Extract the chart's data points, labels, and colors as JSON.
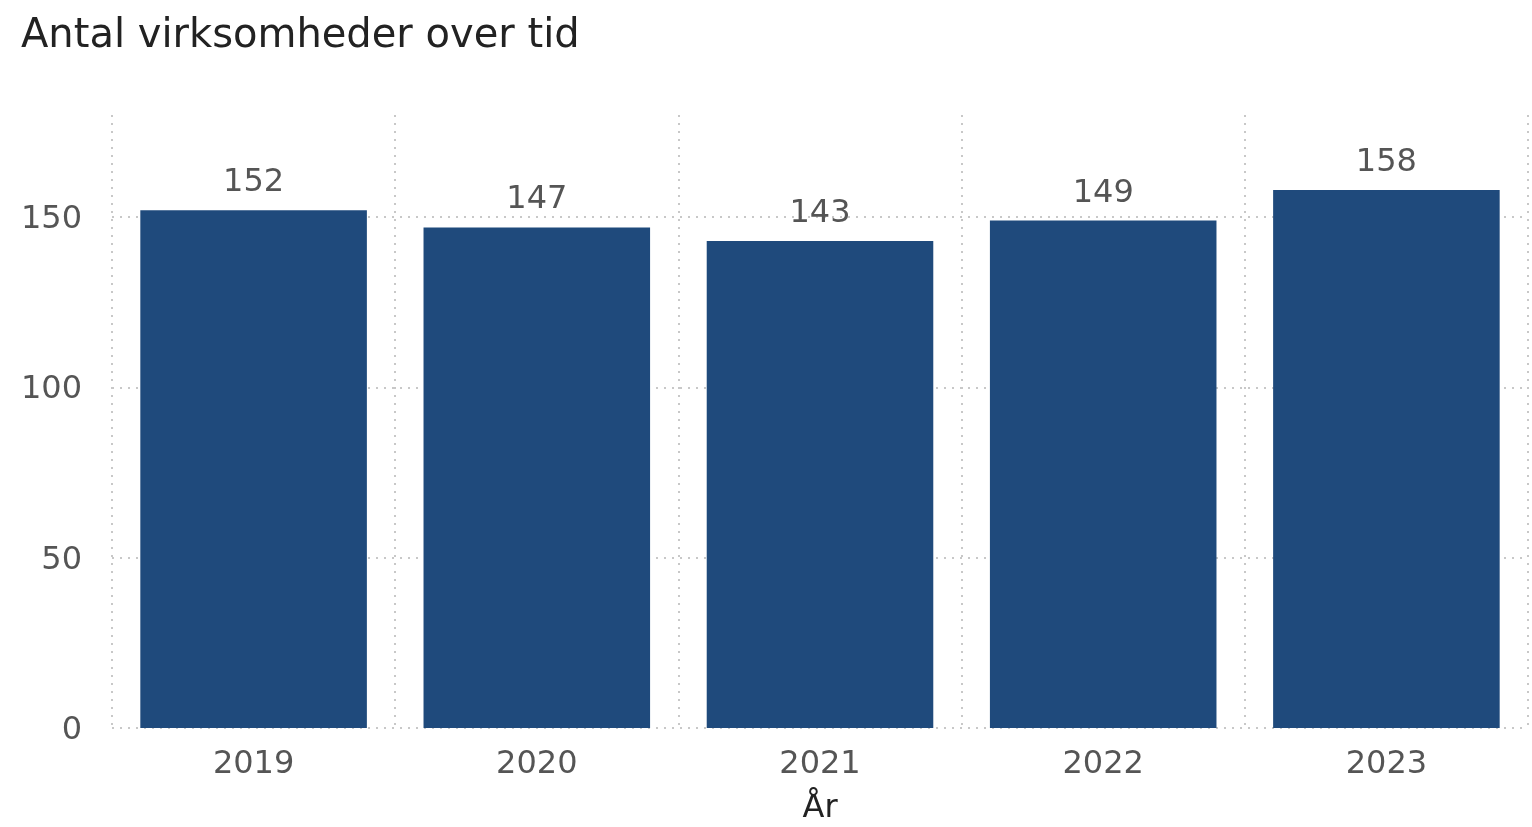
{
  "chart_data": {
    "type": "bar",
    "title": "Antal virksomheder over tid",
    "xlabel": "År",
    "categories": [
      "2019",
      "2020",
      "2021",
      "2022",
      "2023"
    ],
    "values": [
      152,
      147,
      143,
      149,
      158
    ],
    "color": "#1f4a7c",
    "ylim": [
      0,
      180
    ],
    "yticks": [
      0,
      50,
      100,
      150
    ],
    "grid": true,
    "data_labels": true
  }
}
